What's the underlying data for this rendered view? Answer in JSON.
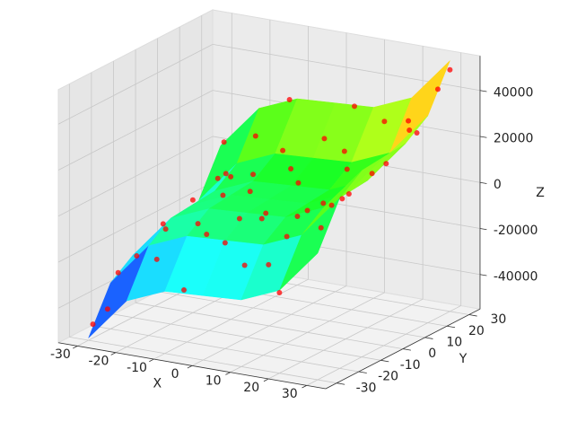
{
  "chart_data": {
    "type": "scatter3d",
    "xlabel": "X",
    "ylabel": "Y",
    "zlabel": "Z",
    "xlim": [
      -35,
      35
    ],
    "ylim": [
      -35,
      35
    ],
    "zlim": [
      -55000,
      55000
    ],
    "xticks": [
      -30,
      -20,
      -10,
      0,
      10,
      20,
      30
    ],
    "yticks": [
      -30,
      -20,
      -10,
      0,
      10,
      20,
      30
    ],
    "zticks": [
      -40000,
      -20000,
      0,
      20000,
      40000
    ],
    "grid": true,
    "surface": {
      "colormap": "rainbow",
      "x": [
        -30,
        -20,
        -10,
        0,
        10,
        20,
        30
      ],
      "y": [
        -30,
        -20,
        -10,
        0,
        10,
        20,
        30
      ],
      "z": [
        [
          -54000,
          -35000,
          -28000,
          -27000,
          -26000,
          -19000,
          0
        ],
        [
          -35000,
          -16000,
          -9000,
          -8000,
          -7000,
          0,
          19000
        ],
        [
          -28000,
          -9000,
          -2000,
          -1000,
          0,
          7000,
          26000
        ],
        [
          -27000,
          -8000,
          -1000,
          0,
          1000,
          8000,
          27000
        ],
        [
          -26000,
          -7000,
          0,
          1000,
          2000,
          9000,
          28000
        ],
        [
          -19000,
          0,
          7000,
          8000,
          9000,
          16000,
          35000
        ],
        [
          0,
          19000,
          26000,
          27000,
          28000,
          35000,
          54000
        ]
      ]
    },
    "series": [
      {
        "color": "#ff0000",
        "x": [
          -30,
          -28,
          -25,
          -22,
          -20,
          -20,
          -18,
          -15,
          -15,
          -12,
          -10,
          -10,
          -8,
          -5,
          -5,
          -3,
          0,
          0,
          2,
          3,
          5,
          5,
          8,
          10,
          10,
          12,
          14,
          15,
          18,
          20,
          20,
          22,
          24,
          25,
          26,
          28,
          28,
          30,
          30,
          -25,
          -28,
          -30,
          -22,
          16,
          -6,
          7,
          -17,
          22,
          -2,
          13
        ],
        "y": [
          -28,
          -20,
          -30,
          -10,
          0,
          15,
          25,
          -25,
          5,
          30,
          -15,
          10,
          20,
          -30,
          0,
          15,
          -20,
          25,
          -5,
          8,
          30,
          -12,
          -25,
          0,
          18,
          -8,
          28,
          -18,
          5,
          -30,
          12,
          -5,
          22,
          -15,
          8,
          28,
          -25,
          15,
          30,
          20,
          28,
          5,
          -22,
          -28,
          -18,
          22,
          12,
          25,
          -10,
          2
        ],
        "z": [
          -49000,
          -30000,
          -40000,
          -12000,
          -6000,
          -2000,
          10000,
          -18000,
          -5000,
          25000,
          -6000,
          3000,
          9000,
          -26000,
          2000,
          5000,
          -9000,
          14000,
          -3000,
          4000,
          27000,
          -1000,
          -14000,
          -2000,
          7000,
          0,
          24000,
          -3000,
          5000,
          -20000,
          11000,
          9000,
          26000,
          12000,
          19000,
          42000,
          8000,
          30000,
          50000,
          -8000,
          3000,
          -24000,
          -20000,
          -10000,
          -8000,
          12000,
          -1000,
          28000,
          -4000,
          1000
        ]
      }
    ]
  }
}
